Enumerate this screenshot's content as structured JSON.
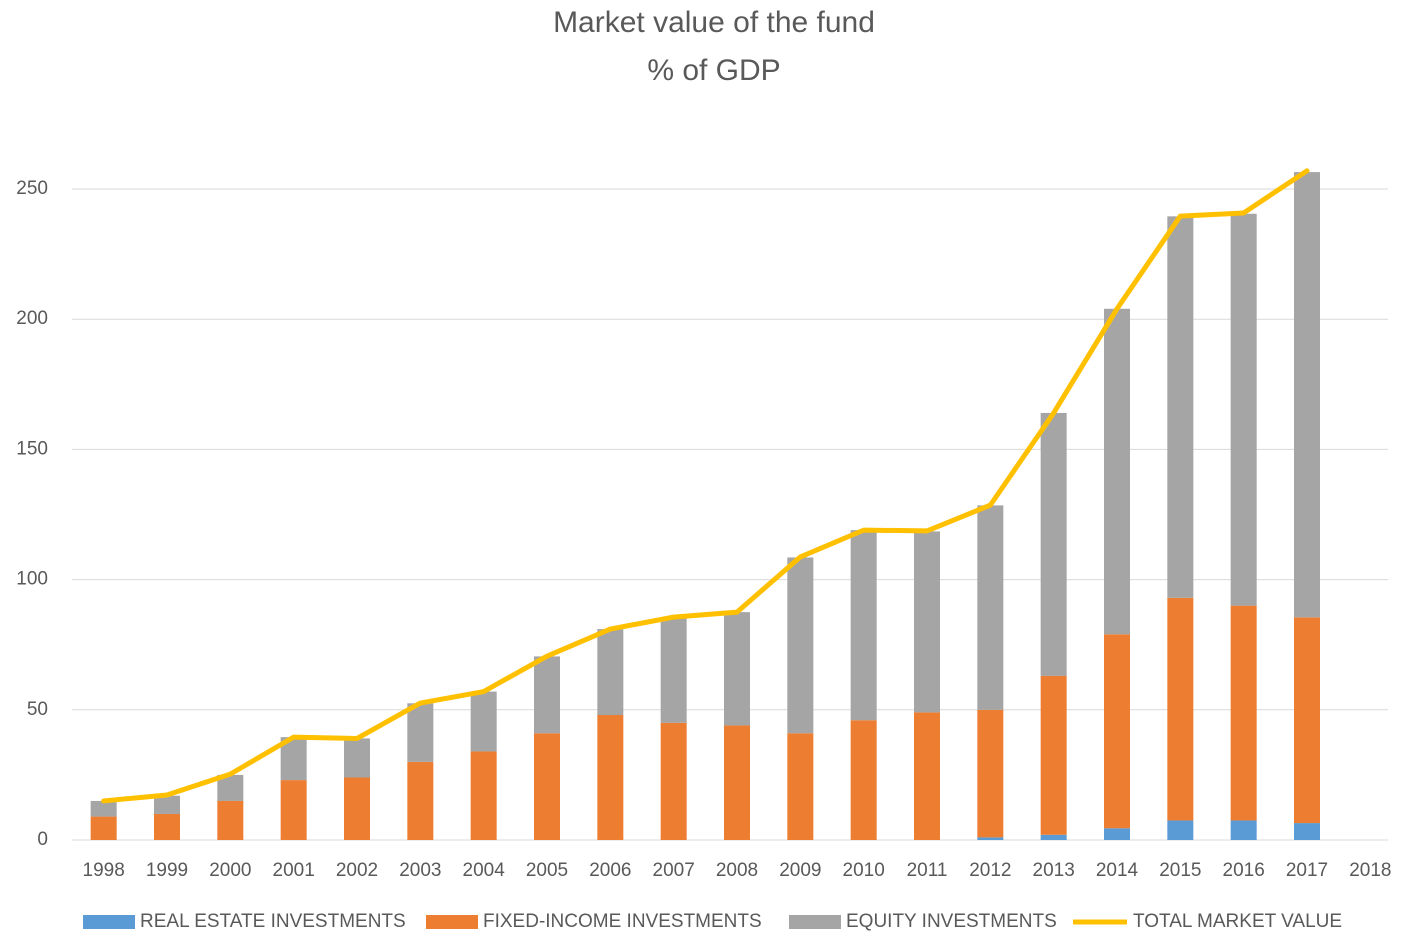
{
  "chart_data": {
    "type": "bar",
    "stacked": true,
    "title": "Market value of the fund",
    "subtitle": "% of GDP",
    "categories": [
      "1998",
      "1999",
      "2000",
      "2001",
      "2002",
      "2003",
      "2004",
      "2005",
      "2006",
      "2007",
      "2008",
      "2009",
      "2010",
      "2011",
      "2012",
      "2013",
      "2014",
      "2015",
      "2016",
      "2017",
      "2018"
    ],
    "series": [
      {
        "name": "REAL ESTATE INVESTMENTS",
        "color": "#5b9bd5",
        "values": [
          0,
          0,
          0,
          0,
          0,
          0,
          0,
          0,
          0,
          0,
          0,
          0,
          0,
          0,
          1,
          2,
          4.5,
          7.5,
          7.5,
          6.5,
          null
        ]
      },
      {
        "name": "FIXED-INCOME INVESTMENTS",
        "color": "#ed7d31",
        "values": [
          9,
          10,
          15,
          23,
          24,
          30,
          34,
          41,
          48,
          45,
          44,
          41,
          46,
          49,
          49,
          61,
          74.5,
          85.5,
          82.5,
          79,
          null
        ]
      },
      {
        "name": "EQUITY INVESTMENTS",
        "color": "#a5a5a5",
        "values": [
          6,
          7,
          10,
          16.5,
          15,
          22.5,
          23,
          29.5,
          33,
          40.5,
          43.5,
          67.5,
          73,
          69.5,
          78.5,
          101,
          125,
          146.5,
          150.5,
          171,
          null
        ]
      },
      {
        "name": "TOTAL MARKET VALUE",
        "color": "#ffc000",
        "type": "line",
        "values": [
          15,
          17.3,
          25.3,
          39.5,
          39,
          52.6,
          57,
          70.6,
          81,
          85.6,
          87.5,
          108.7,
          119,
          118.7,
          128.6,
          164,
          204,
          239.6,
          240.8,
          257,
          null
        ]
      }
    ],
    "ylim": [
      0,
      250
    ],
    "yticks": [
      0,
      50,
      100,
      150,
      200,
      250
    ],
    "grid": true,
    "legend": "bottom"
  }
}
